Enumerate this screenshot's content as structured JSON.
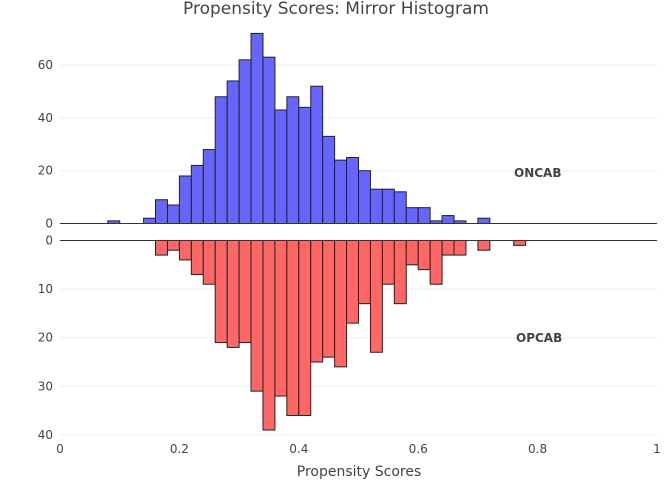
{
  "chart_data": {
    "type": "bar",
    "title": "Propensity Scores: Mirror Histogram",
    "xlabel": "Propensity Scores",
    "xlim": [
      0,
      1
    ],
    "x_ticks": [
      "0",
      "0.2",
      "0.4",
      "0.6",
      "0.8",
      "1"
    ],
    "bin_width": 0.02,
    "panels": [
      {
        "name": "ONCAB",
        "direction": "up",
        "ylim": [
          0,
          72
        ],
        "y_ticks": [
          "0",
          "20",
          "40",
          "60"
        ],
        "color": "#6666ff",
        "bin_starts": [
          0.08,
          0.14,
          0.16,
          0.18,
          0.2,
          0.22,
          0.24,
          0.26,
          0.28,
          0.3,
          0.32,
          0.34,
          0.36,
          0.38,
          0.4,
          0.42,
          0.44,
          0.46,
          0.48,
          0.5,
          0.52,
          0.54,
          0.56,
          0.58,
          0.6,
          0.62,
          0.64,
          0.66,
          0.7
        ],
        "values": [
          1,
          2,
          9,
          7,
          18,
          22,
          28,
          48,
          54,
          62,
          72,
          63,
          43,
          48,
          44,
          52,
          33,
          24,
          25,
          20,
          13,
          13,
          12,
          6,
          6,
          1,
          3,
          1,
          2
        ]
      },
      {
        "name": "OPCAB",
        "direction": "down",
        "ylim": [
          0,
          40
        ],
        "y_ticks": [
          "0",
          "10",
          "20",
          "30",
          "40"
        ],
        "color": "#ff6666",
        "bin_starts": [
          0.16,
          0.18,
          0.2,
          0.22,
          0.24,
          0.26,
          0.28,
          0.3,
          0.32,
          0.34,
          0.36,
          0.38,
          0.4,
          0.42,
          0.44,
          0.46,
          0.48,
          0.5,
          0.52,
          0.54,
          0.56,
          0.58,
          0.6,
          0.62,
          0.64,
          0.66,
          0.7,
          0.76
        ],
        "values": [
          3,
          2,
          4,
          7,
          9,
          21,
          22,
          21,
          31,
          39,
          32,
          36,
          36,
          25,
          24,
          26,
          17,
          13,
          23,
          9,
          13,
          5,
          6,
          9,
          3,
          3,
          2,
          1
        ]
      }
    ]
  }
}
